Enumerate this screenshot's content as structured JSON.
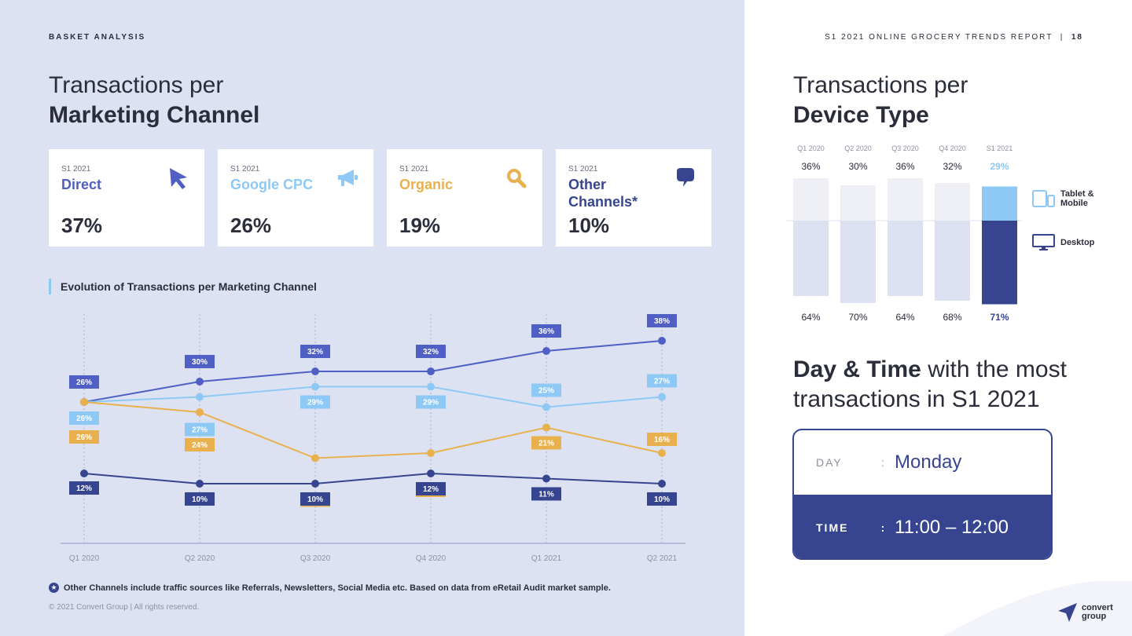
{
  "header": {
    "section_label": "BASKET ANALYSIS",
    "report_title": "S1 2021 ONLINE GROCERY TRENDS REPORT",
    "separator": "|",
    "page_number": "18"
  },
  "left": {
    "title_light": "Transactions per",
    "title_bold": "Marketing Channel",
    "cards": [
      {
        "period": "S1 2021",
        "name": "Direct",
        "value": "37%",
        "color": "#4f5fc4",
        "icon": "cursor-icon"
      },
      {
        "period": "S1 2021",
        "name": "Google CPC",
        "value": "26%",
        "color": "#8ec9f5",
        "icon": "megaphone-icon"
      },
      {
        "period": "S1 2021",
        "name": "Organic",
        "value": "19%",
        "color": "#e8b14e",
        "icon": "search-icon"
      },
      {
        "period": "S1 2021",
        "name": "Other Channels*",
        "value": "10%",
        "color": "#374590",
        "icon": "chat-bubble-icon"
      }
    ],
    "chart_title": "Evolution of Transactions per Marketing Channel",
    "footnote": "Other Channels include traffic sources like Referrals, Newsletters, Social Media etc. Based on data from eRetail Audit market sample.",
    "footnote_icon": "star-icon",
    "copyright": "© 2021 Convert Group  |  All rights reserved."
  },
  "chart_data": [
    {
      "type": "line",
      "title": "Evolution of Transactions per Marketing Channel",
      "categories": [
        "Q1 2020",
        "Q2 2020",
        "Q3 2020",
        "Q4 2020",
        "Q1 2021",
        "Q2 2021"
      ],
      "ylim": [
        0,
        45
      ],
      "grid": "vertical-dotted",
      "series": [
        {
          "name": "Direct",
          "color": "#4f5fc4",
          "values": [
            26,
            30,
            32,
            32,
            36,
            38
          ]
        },
        {
          "name": "Google CPC",
          "color": "#8ec9f5",
          "values": [
            26,
            27,
            29,
            29,
            25,
            27
          ]
        },
        {
          "name": "Organic",
          "color": "#e8b14e",
          "values": [
            26,
            24,
            15,
            16,
            21,
            16
          ]
        },
        {
          "name": "Other Channels*",
          "color": "#374590",
          "values": [
            12,
            10,
            10,
            12,
            11,
            10
          ]
        }
      ]
    },
    {
      "type": "bar",
      "title": "Transactions per Device Type",
      "categories": [
        "Q1 2020",
        "Q2 2020",
        "Q3 2020",
        "Q4 2020",
        "S1 2021"
      ],
      "series": [
        {
          "name": "Tablet & Mobile",
          "values": [
            36,
            30,
            36,
            32,
            29
          ]
        },
        {
          "name": "Desktop",
          "values": [
            64,
            70,
            64,
            68,
            71
          ]
        }
      ],
      "top_labels": [
        "36%",
        "30%",
        "36%",
        "32%",
        "29%"
      ],
      "bottom_labels": [
        "64%",
        "70%",
        "64%",
        "68%",
        "71%"
      ],
      "highlight_index": 4,
      "colors": {
        "muted_top": "#eef0f6",
        "muted_bottom": "#dde2f3",
        "hl_top": "#8ec9f5",
        "hl_bottom": "#374590"
      }
    }
  ],
  "right": {
    "title_light": "Transactions per",
    "title_bold": "Device Type",
    "legend": [
      {
        "label": "Tablet & Mobile",
        "icon": "tablet-mobile-icon"
      },
      {
        "label": "Desktop",
        "icon": "desktop-icon"
      }
    ],
    "daytime_title_bold": "Day & Time",
    "daytime_title_rest": " with the most",
    "daytime_title_line2": "transactions in S1 2021",
    "day_label": "DAY",
    "day_value": "Monday",
    "time_label": "TIME",
    "time_value": "11:00 – 12:00",
    "colon": ":"
  },
  "logo": {
    "line1": "convert",
    "line2": "group",
    "icon": "paper-plane-icon"
  }
}
